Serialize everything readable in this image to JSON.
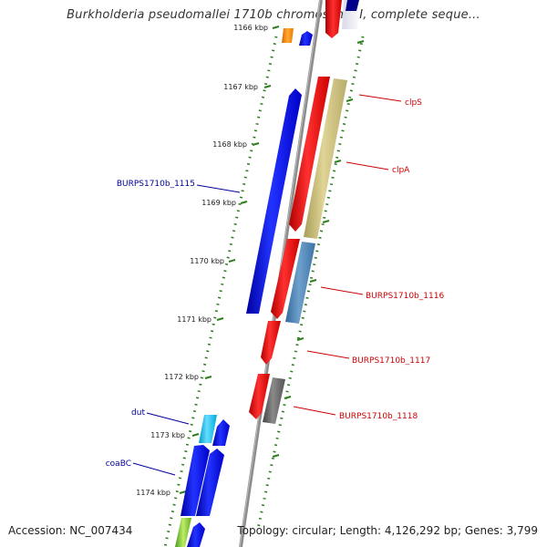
{
  "title": "Burkholderia pseudomallei 1710b chromosome I, complete seque...",
  "accession": "Accession: NC_007434",
  "summary": "Topology: circular; Length: 4,126,292 bp; Genes: 3,799",
  "ticks": [
    {
      "label": "1166 kbp"
    },
    {
      "label": "1167 kbp"
    },
    {
      "label": "1168 kbp"
    },
    {
      "label": "1169 kbp"
    },
    {
      "label": "1170 kbp"
    },
    {
      "label": "1171 kbp"
    },
    {
      "label": "1172 kbp"
    },
    {
      "label": "1173 kbp"
    },
    {
      "label": "1174 kbp"
    }
  ],
  "genes": [
    {
      "name": "clpS",
      "strand": "reverse",
      "color": "#cc0000"
    },
    {
      "name": "clpA",
      "strand": "reverse",
      "color": "#cc0000"
    },
    {
      "name": "BURPS1710b_1115",
      "strand": "forward",
      "color": "#000099"
    },
    {
      "name": "BURPS1710b_1116",
      "strand": "reverse",
      "color": "#cc0000"
    },
    {
      "name": "BURPS1710b_1117",
      "strand": "reverse",
      "color": "#cc0000"
    },
    {
      "name": "BURPS1710b_1118",
      "strand": "reverse",
      "color": "#cc0000"
    },
    {
      "name": "dut",
      "strand": "forward",
      "color": "#000099"
    },
    {
      "name": "coaBC",
      "strand": "forward",
      "color": "#000099"
    }
  ],
  "colors": {
    "forward_cds": "#0000ee",
    "reverse_cds": "#ee0000",
    "backbone": "#888888",
    "tick_marks": "#2e7d1f"
  }
}
